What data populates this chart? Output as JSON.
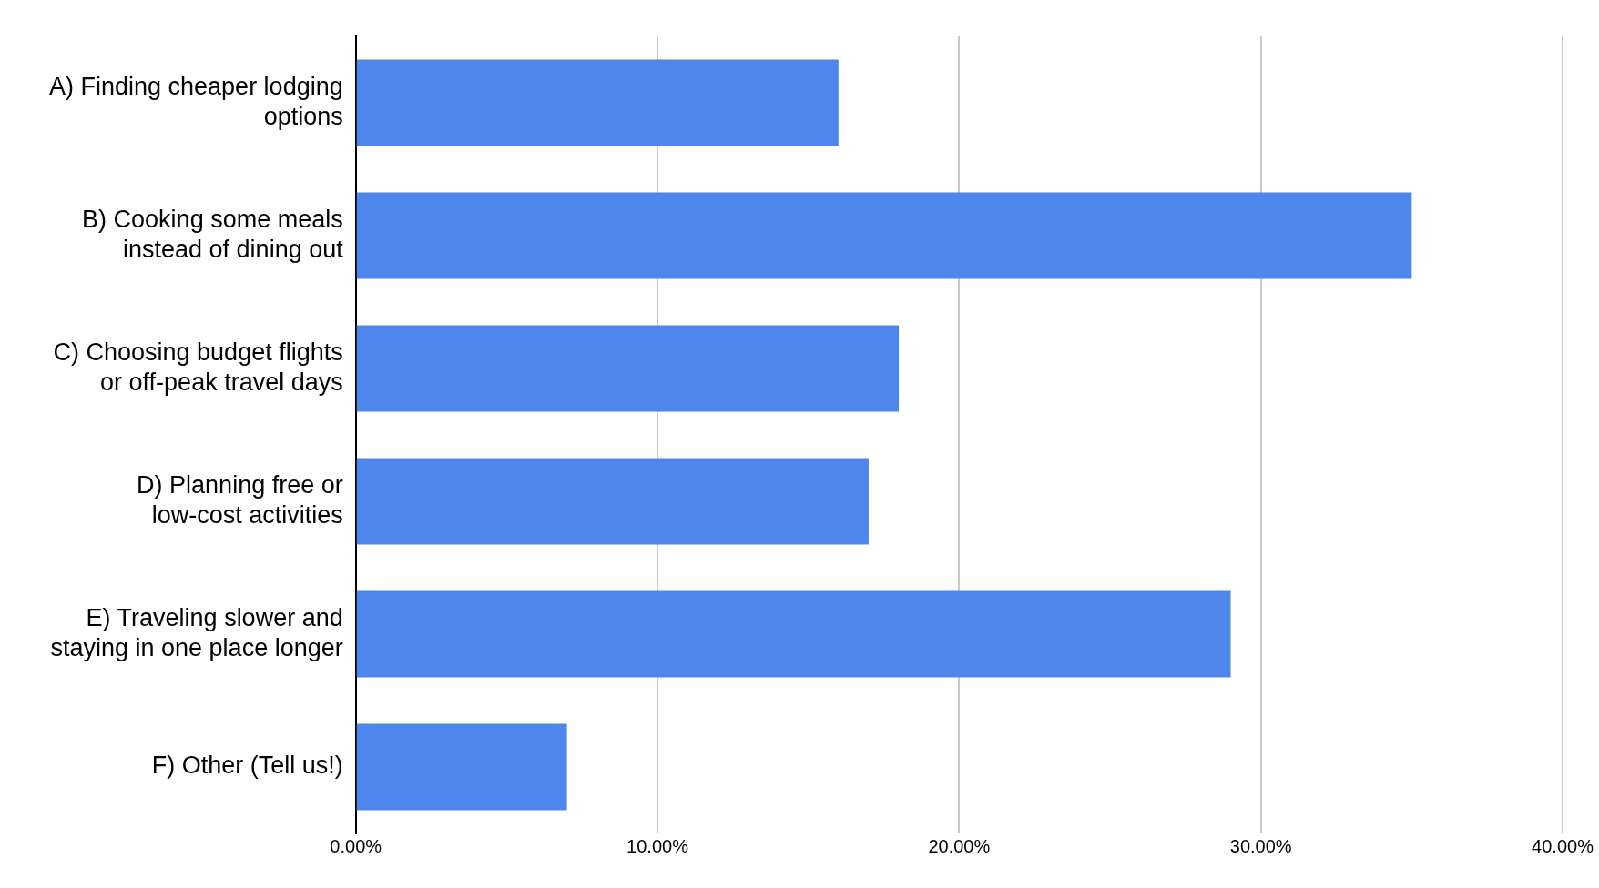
{
  "chart_data": {
    "type": "bar",
    "orientation": "horizontal",
    "categories": [
      "A) Finding cheaper lodging options",
      "B) Cooking some meals instead of dining out",
      "C) Choosing budget flights or off-peak travel days",
      "D) Planning free or low-cost activities",
      "E) Traveling slower and staying in one place longer",
      "F) Other (Tell us!)"
    ],
    "values": [
      16,
      35,
      18,
      17,
      29,
      7
    ],
    "color": "#4f86ec",
    "xlim": [
      0,
      40
    ],
    "xticks": [
      {
        "value": 0,
        "label": "0.00%"
      },
      {
        "value": 10,
        "label": "10.00%"
      },
      {
        "value": 20,
        "label": "20.00%"
      },
      {
        "value": 30,
        "label": "30.00%"
      },
      {
        "value": 40,
        "label": "40.00%"
      }
    ],
    "grid": "x"
  }
}
